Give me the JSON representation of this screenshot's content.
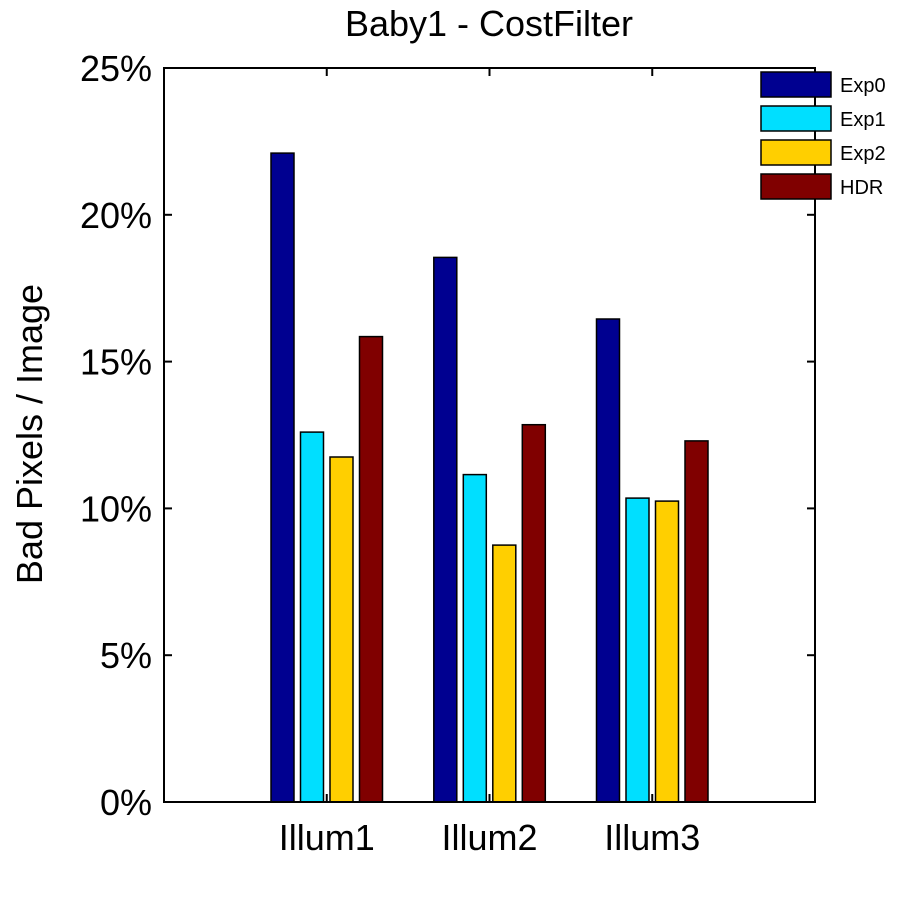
{
  "chart_data": {
    "type": "bar",
    "title": "Baby1 - CostFilter",
    "xlabel": "",
    "ylabel": "Bad Pixels / Image",
    "categories": [
      "Illum1",
      "Illum2",
      "Illum3"
    ],
    "series": [
      {
        "name": "Exp0",
        "color": "#000090",
        "values": [
          22.1,
          18.55,
          16.45
        ]
      },
      {
        "name": "Exp1",
        "color": "#00DFFF",
        "values": [
          12.6,
          11.15,
          10.35
        ]
      },
      {
        "name": "Exp2",
        "color": "#FFCF00",
        "values": [
          11.75,
          8.75,
          10.25
        ]
      },
      {
        "name": "HDR",
        "color": "#800000",
        "values": [
          15.85,
          12.85,
          12.3
        ]
      }
    ],
    "ylim": [
      0,
      25
    ],
    "yticks": [
      0,
      5,
      10,
      15,
      20,
      25
    ],
    "ytick_labels": [
      "0%",
      "5%",
      "10%",
      "15%",
      "20%",
      "25%"
    ],
    "legend_position": "top-right",
    "grid": false
  }
}
